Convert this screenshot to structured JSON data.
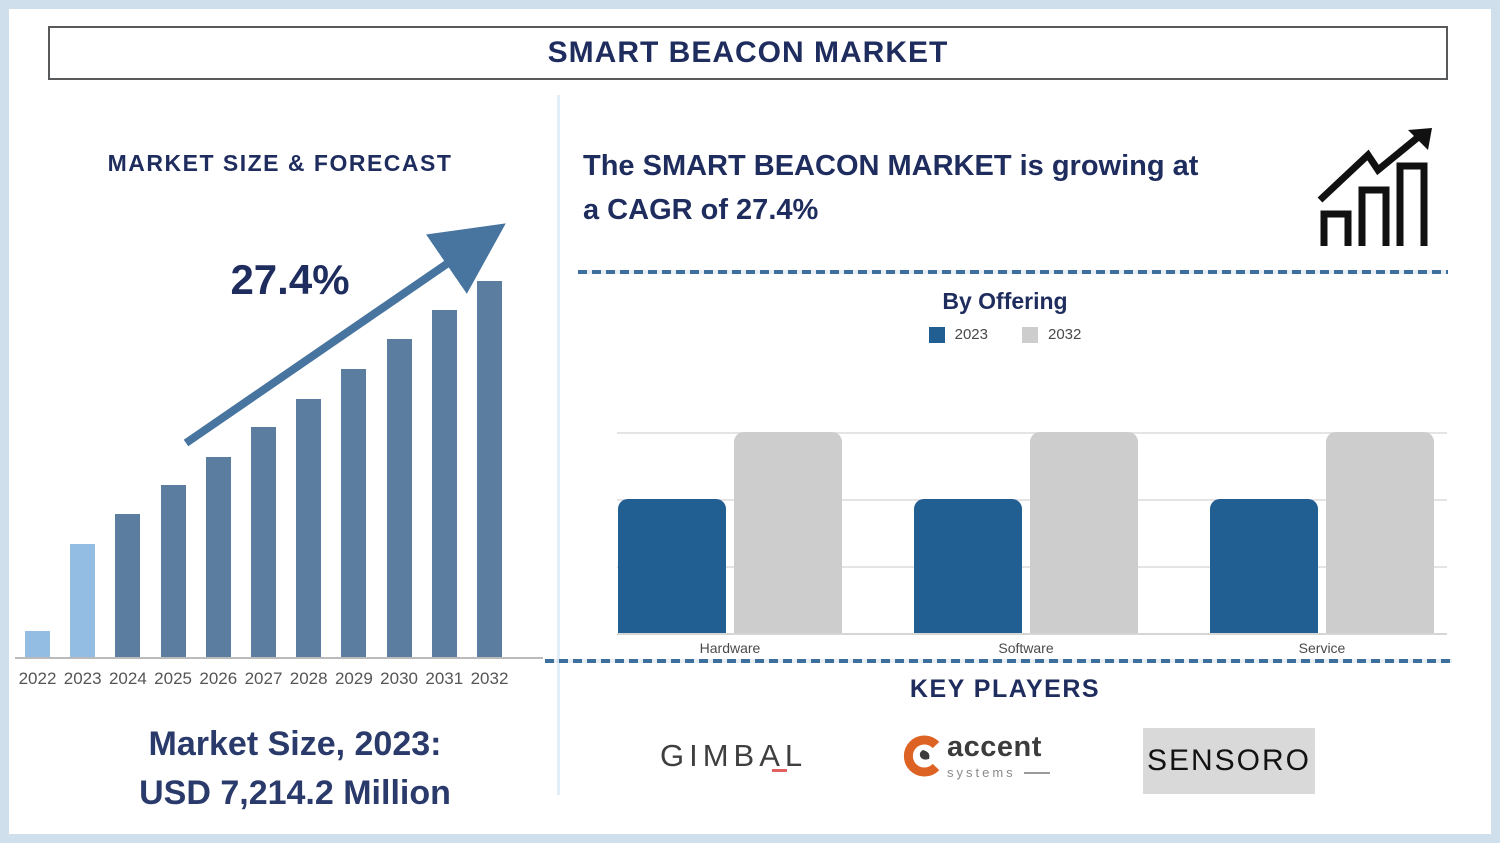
{
  "page": {
    "title": "SMART BEACON MARKET",
    "frame_color": "#cfe0ec",
    "navy": "#1e2c5e"
  },
  "left": {
    "heading": "MARKET SIZE & FORECAST",
    "cagr_label": "27.4%",
    "market_size_line1": "Market Size, 2023:",
    "market_size_line2": "USD 7,214.2 Million"
  },
  "right": {
    "growth_line1": "The SMART BEACON MARKET is growing at",
    "growth_line2": "a CAGR of 27.4%",
    "key_players": {
      "heading": "KEY PLAYERS",
      "logos": [
        {
          "name": "GIMBAL"
        },
        {
          "name": "accent",
          "sub": "systems"
        },
        {
          "name": "SENSORO"
        }
      ]
    }
  },
  "chart_data": [
    {
      "type": "bar",
      "title": "MARKET SIZE & FORECAST",
      "annotation": "27.4%",
      "categories": [
        "2022",
        "2023",
        "2024",
        "2025",
        "2026",
        "2027",
        "2028",
        "2029",
        "2030",
        "2031",
        "2032"
      ],
      "values_relative_pct": [
        7.2,
        30.2,
        38.2,
        45.9,
        53.3,
        61.3,
        68.7,
        76.7,
        84.6,
        92.3,
        100
      ],
      "known_values": {
        "2023": "USD 7,214.2 Million"
      },
      "cagr": "27.4%",
      "bar_colors": [
        "#94bde4",
        "#94bde4",
        "#5a7da0",
        "#5a7da0",
        "#5a7da0",
        "#5a7da0",
        "#5a7da0",
        "#5a7da0",
        "#5a7da0",
        "#5a7da0",
        "#5a7da0"
      ],
      "value_axis_shown": false,
      "xlabel": "",
      "ylabel": ""
    },
    {
      "type": "bar",
      "title": "By Offering",
      "categories": [
        "Hardware",
        "Software",
        "Service"
      ],
      "series": [
        {
          "name": "2023",
          "color": "#215e92",
          "values": [
            2,
            2,
            2
          ]
        },
        {
          "name": "2032",
          "color": "#cdcdcd",
          "values": [
            3,
            3,
            3
          ]
        }
      ],
      "ylim": [
        0,
        3
      ],
      "grid": true,
      "legend_position": "top",
      "value_axis_shown": false,
      "xlabel": "",
      "ylabel": ""
    }
  ]
}
